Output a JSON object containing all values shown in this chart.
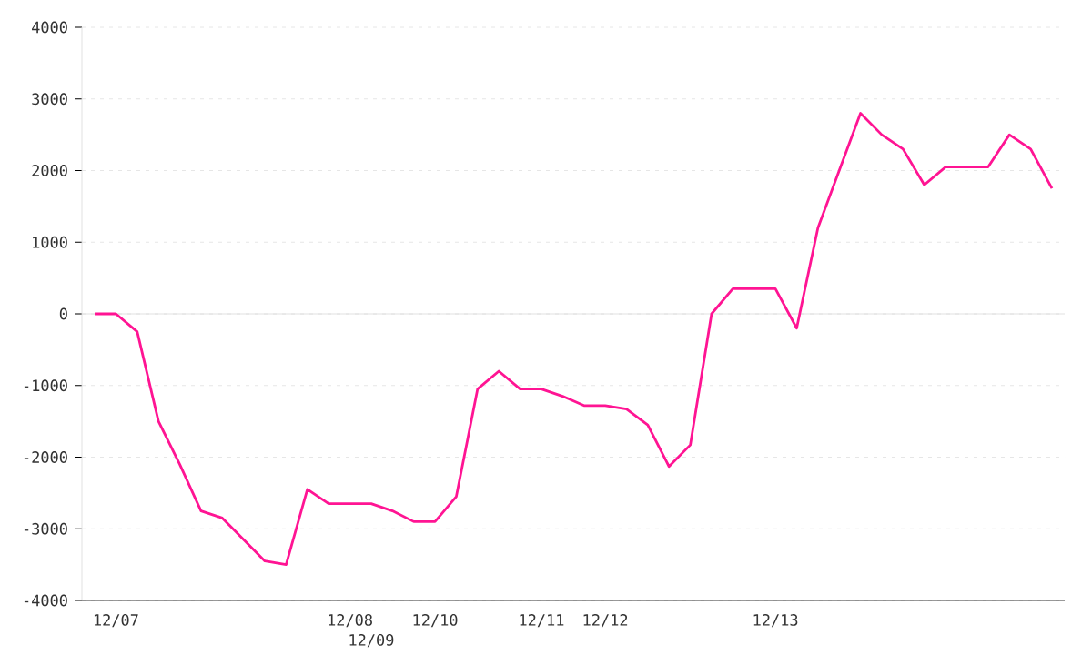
{
  "chart_data": {
    "type": "line",
    "categories": [
      null,
      "12/07",
      null,
      null,
      null,
      null,
      null,
      null,
      null,
      null,
      null,
      null,
      "12/08",
      "12/09",
      null,
      null,
      "12/10",
      null,
      null,
      null,
      null,
      "12/11",
      null,
      null,
      "12/12",
      null,
      null,
      null,
      null,
      null,
      null,
      null,
      "12/13",
      null,
      null,
      null,
      null,
      null,
      null,
      null,
      null,
      null,
      null,
      null,
      null,
      null
    ],
    "series": [
      {
        "color": "#ff1493",
        "values": [
          0,
          0,
          -250,
          -1500,
          -2100,
          -2750,
          -2850,
          -3150,
          -3450,
          -3500,
          -2450,
          -2650,
          -2650,
          -2650,
          -2750,
          -2900,
          -2900,
          -2550,
          -1050,
          -800,
          -1050,
          -1050,
          -1150,
          -1280,
          -1280,
          -1330,
          -1550,
          -2130,
          -1830,
          0,
          350,
          350,
          350,
          -200,
          1200,
          2000,
          2800,
          2500,
          2300,
          1800,
          2050,
          2050,
          2050,
          2500,
          2300,
          1750
        ]
      }
    ],
    "ylim": [
      -4000,
      4000
    ],
    "yticks": [
      -4000,
      -3000,
      -2000,
      -1000,
      0,
      1000,
      2000,
      3000,
      4000
    ],
    "grid": "y",
    "marker": "none",
    "line_style": "solid"
  }
}
